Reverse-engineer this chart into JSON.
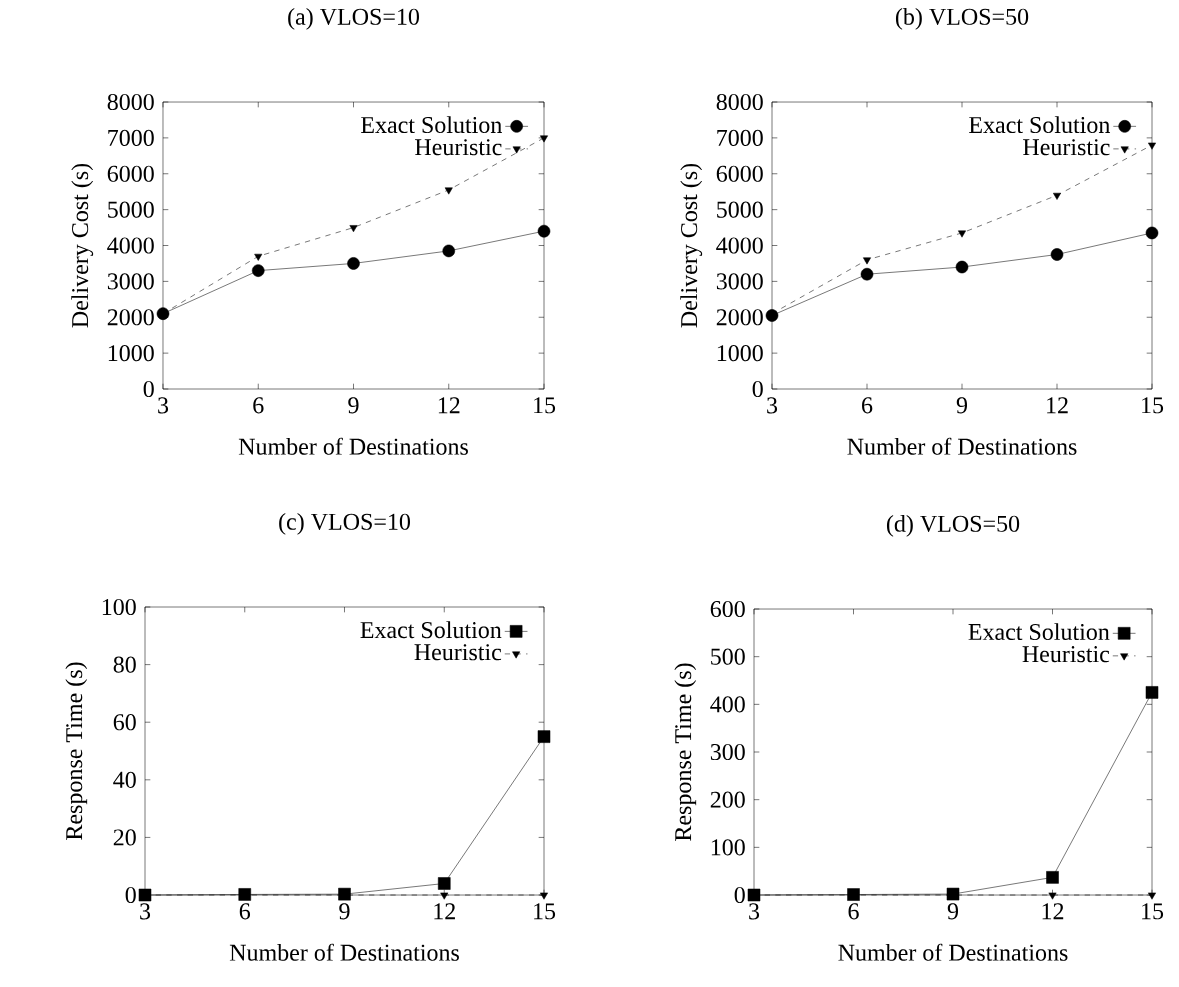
{
  "chart_data": [
    {
      "type": "line",
      "title": "(a) VLOS=10",
      "xlabel": "Number of Destinations",
      "ylabel": "Delivery Cost (s)",
      "x": [
        3,
        6,
        9,
        12,
        15
      ],
      "xlim": [
        3,
        15
      ],
      "xticks": [
        3,
        6,
        9,
        12,
        15
      ],
      "ylim": [
        0,
        8000
      ],
      "yticks": [
        0,
        1000,
        2000,
        3000,
        4000,
        5000,
        6000,
        7000,
        8000
      ],
      "legend": "top right",
      "grid": false,
      "series": [
        {
          "name": "Exact Solution",
          "color": "#000000",
          "marker": "circle",
          "line_style": "solid",
          "values": [
            2100,
            3300,
            3500,
            3850,
            4400
          ]
        },
        {
          "name": "Heuristic",
          "color": "#000000",
          "marker": "triangle",
          "line_style": "dashed",
          "values": [
            2100,
            3700,
            4500,
            5550,
            7000
          ]
        }
      ]
    },
    {
      "type": "line",
      "title": "(b) VLOS=50",
      "xlabel": "Number of Destinations",
      "ylabel": "Delivery Cost (s)",
      "x": [
        3,
        6,
        9,
        12,
        15
      ],
      "xlim": [
        3,
        15
      ],
      "xticks": [
        3,
        6,
        9,
        12,
        15
      ],
      "ylim": [
        0,
        8000
      ],
      "yticks": [
        0,
        1000,
        2000,
        3000,
        4000,
        5000,
        6000,
        7000,
        8000
      ],
      "legend": "top right",
      "grid": false,
      "series": [
        {
          "name": "Exact Solution",
          "color": "#000000",
          "marker": "circle",
          "line_style": "solid",
          "values": [
            2050,
            3200,
            3400,
            3750,
            4350
          ]
        },
        {
          "name": "Heuristic",
          "color": "#000000",
          "marker": "triangle",
          "line_style": "dashed",
          "values": [
            2100,
            3600,
            4350,
            5400,
            6800
          ]
        }
      ]
    },
    {
      "type": "line",
      "title": "(c) VLOS=10",
      "xlabel": "Number of Destinations",
      "ylabel": "Response Time (s)",
      "x": [
        3,
        6,
        9,
        12,
        15
      ],
      "xlim": [
        3,
        15
      ],
      "xticks": [
        3,
        6,
        9,
        12,
        15
      ],
      "ylim": [
        0,
        100
      ],
      "yticks": [
        0,
        20,
        40,
        60,
        80,
        100
      ],
      "legend": "top right",
      "grid": false,
      "series": [
        {
          "name": "Exact Solution",
          "color": "#000000",
          "marker": "square",
          "line_style": "solid",
          "values": [
            0,
            0.2,
            0.3,
            4,
            55
          ]
        },
        {
          "name": "Heuristic",
          "color": "#000000",
          "marker": "triangle",
          "line_style": "dashed",
          "values": [
            0,
            0,
            0,
            0,
            0
          ]
        }
      ]
    },
    {
      "type": "line",
      "title": "(d) VLOS=50",
      "xlabel": "Number of Destinations",
      "ylabel": "Response Time (s)",
      "x": [
        3,
        6,
        9,
        12,
        15
      ],
      "xlim": [
        3,
        15
      ],
      "xticks": [
        3,
        6,
        9,
        12,
        15
      ],
      "ylim": [
        0,
        600
      ],
      "yticks": [
        0,
        100,
        200,
        300,
        400,
        500,
        600
      ],
      "legend": "top right",
      "grid": false,
      "series": [
        {
          "name": "Exact Solution",
          "color": "#000000",
          "marker": "square",
          "line_style": "solid",
          "values": [
            0,
            1,
            2,
            37,
            425
          ]
        },
        {
          "name": "Heuristic",
          "color": "#000000",
          "marker": "triangle",
          "line_style": "dashed",
          "values": [
            0,
            0,
            0,
            0,
            0
          ]
        }
      ]
    }
  ]
}
